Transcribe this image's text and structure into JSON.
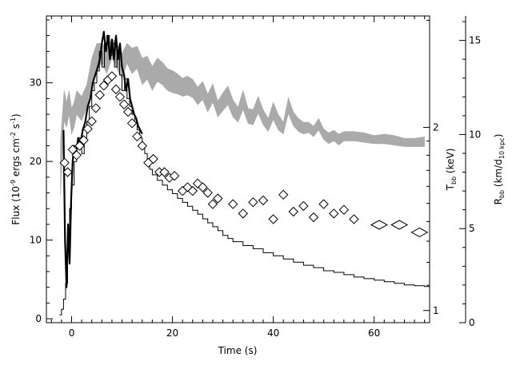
{
  "chart_data": {
    "type": "line",
    "xlabel": "Time (s)",
    "xlim": [
      -5,
      71
    ],
    "x_ticks": [
      0,
      20,
      40,
      60
    ],
    "y_left": {
      "label_parts": [
        "Flux (10",
        "-9",
        " ergs cm",
        "-2",
        " s",
        "-1",
        ")"
      ],
      "lim": [
        -0.5,
        38.5
      ],
      "ticks": [
        0,
        10,
        20,
        30
      ]
    },
    "y_tbb": {
      "label_main": "T",
      "label_sub": "bb",
      "label_rest": " (keV)",
      "scale": "log",
      "lim": [
        0.955,
        3.05
      ],
      "ticks": [
        1,
        2
      ]
    },
    "y_rbb": {
      "label_main": "R",
      "label_sub": "bb",
      "label_rest1": " (km/d",
      "label_sub2": "10 kpc",
      "label_rest2": ")",
      "lim": [
        0,
        16.3
      ],
      "ticks": [
        0,
        5,
        10,
        15
      ]
    },
    "series": [
      {
        "style": "step",
        "axis": "left",
        "points": [
          [
            -2.4,
            0.5
          ],
          [
            -2.0,
            1.2
          ],
          [
            -1.6,
            2.5
          ],
          [
            -1.2,
            4.5
          ],
          [
            -0.8,
            9
          ],
          [
            -0.4,
            14
          ],
          [
            0,
            17
          ],
          [
            0.5,
            20
          ],
          [
            1,
            22
          ],
          [
            1.5,
            23
          ],
          [
            2,
            21
          ],
          [
            2.5,
            23
          ],
          [
            3,
            25
          ],
          [
            3.5,
            27
          ],
          [
            4,
            29
          ],
          [
            4.5,
            30
          ],
          [
            5,
            31.5
          ],
          [
            5.5,
            34
          ],
          [
            6,
            32
          ],
          [
            6.5,
            35
          ],
          [
            7,
            36
          ],
          [
            7.5,
            33.5
          ],
          [
            8,
            35
          ],
          [
            8.5,
            32
          ],
          [
            9,
            34
          ],
          [
            9.5,
            31
          ],
          [
            10,
            29
          ],
          [
            10.5,
            30.5
          ],
          [
            11,
            28
          ],
          [
            11.5,
            27
          ],
          [
            12,
            26
          ],
          [
            12.5,
            25
          ],
          [
            13,
            24
          ],
          [
            13.5,
            23
          ],
          [
            14,
            22
          ],
          [
            14.5,
            21
          ],
          [
            15,
            20
          ],
          [
            15.5,
            19
          ],
          [
            16,
            18.3
          ],
          [
            17,
            17.6
          ],
          [
            18,
            17
          ],
          [
            19,
            16.4
          ],
          [
            20,
            15.9
          ],
          [
            21,
            15.3
          ],
          [
            22,
            14.8
          ],
          [
            23,
            14.3
          ],
          [
            24,
            13.8
          ],
          [
            25,
            13.3
          ],
          [
            26,
            12.7
          ],
          [
            27,
            12.2
          ],
          [
            28,
            11.7
          ],
          [
            29,
            11.2
          ],
          [
            30,
            10.6
          ],
          [
            31,
            10.2
          ],
          [
            32,
            9.8
          ],
          [
            34,
            9.3
          ],
          [
            36,
            8.9
          ],
          [
            38,
            8.4
          ],
          [
            40,
            8.0
          ],
          [
            42,
            7.6
          ],
          [
            44,
            7.2
          ],
          [
            46,
            6.8
          ],
          [
            48,
            6.5
          ],
          [
            50,
            6.1
          ],
          [
            52,
            5.9
          ],
          [
            54,
            5.6
          ],
          [
            56,
            5.3
          ],
          [
            58,
            5.1
          ],
          [
            60,
            4.9
          ],
          [
            62,
            4.7
          ],
          [
            64,
            4.5
          ],
          [
            66,
            4.3
          ],
          [
            68,
            4.2
          ],
          [
            70,
            4.1
          ]
        ]
      },
      {
        "style": "thick-line",
        "axis": "left",
        "points": [
          [
            -1.6,
            24
          ],
          [
            -1.3,
            10
          ],
          [
            -1.0,
            4
          ],
          [
            -0.7,
            12
          ],
          [
            -0.4,
            7
          ],
          [
            -0.1,
            15
          ],
          [
            0.2,
            20
          ],
          [
            0.5,
            22
          ],
          [
            0.9,
            21
          ],
          [
            1.3,
            23
          ],
          [
            1.7,
            22
          ],
          [
            2.2,
            24
          ],
          [
            2.7,
            25
          ],
          [
            3.2,
            27
          ],
          [
            3.7,
            28
          ],
          [
            4.2,
            30
          ],
          [
            4.7,
            31
          ],
          [
            5.2,
            32
          ],
          [
            5.6,
            33
          ],
          [
            6.0,
            35
          ],
          [
            6.4,
            36.5
          ],
          [
            6.8,
            34
          ],
          [
            7.2,
            36
          ],
          [
            7.6,
            33
          ],
          [
            8.0,
            35.5
          ],
          [
            8.4,
            33
          ],
          [
            8.8,
            36
          ],
          [
            9.2,
            33
          ],
          [
            9.6,
            35
          ],
          [
            10.0,
            32
          ],
          [
            10.4,
            31
          ],
          [
            10.8,
            29
          ],
          [
            11.2,
            30.5
          ],
          [
            11.6,
            28
          ],
          [
            12.0,
            27
          ],
          [
            12.4,
            26
          ],
          [
            12.8,
            25.5
          ],
          [
            13.2,
            24.5
          ],
          [
            13.6,
            24
          ],
          [
            14.0,
            23.5
          ]
        ]
      },
      {
        "style": "band",
        "axis": "tbb",
        "color": "#aaaaaa",
        "x": [
          -2.2,
          -1.5,
          -1,
          -0.5,
          0,
          0.5,
          1,
          2,
          3,
          4,
          5,
          6,
          7,
          8,
          9,
          10,
          11,
          12,
          13,
          14,
          15,
          16,
          17,
          18,
          19,
          20,
          21,
          22,
          23,
          24,
          25,
          26,
          27,
          28,
          29,
          30,
          31,
          32,
          33,
          34,
          35,
          36,
          37,
          38,
          39,
          40,
          41,
          42,
          43,
          44,
          45,
          46,
          47,
          48,
          49,
          50,
          51,
          52,
          53,
          54,
          56,
          58,
          60,
          62,
          64,
          66,
          68,
          70
        ],
        "lower": [
          1.55,
          2.05,
          2.0,
          2.1,
          1.95,
          2.0,
          2.1,
          2.05,
          2.15,
          2.35,
          2.5,
          2.55,
          2.45,
          2.6,
          2.5,
          2.4,
          2.55,
          2.45,
          2.5,
          2.35,
          2.4,
          2.3,
          2.38,
          2.35,
          2.3,
          2.28,
          2.27,
          2.25,
          2.26,
          2.24,
          2.18,
          2.22,
          2.12,
          2.2,
          2.08,
          2.13,
          2.18,
          2.08,
          2.04,
          2.14,
          2.03,
          2.02,
          2.11,
          2.02,
          1.97,
          2.06,
          1.98,
          1.95,
          2.11,
          2.01,
          1.97,
          1.95,
          1.96,
          1.93,
          1.98,
          1.91,
          1.88,
          1.9,
          1.87,
          1.9,
          1.9,
          1.89,
          1.88,
          1.88,
          1.87,
          1.86,
          1.86,
          1.86
        ],
        "upper": [
          1.9,
          2.3,
          2.2,
          2.3,
          2.15,
          2.2,
          2.3,
          2.25,
          2.35,
          2.6,
          2.75,
          2.75,
          2.7,
          2.8,
          2.75,
          2.65,
          2.75,
          2.7,
          2.72,
          2.6,
          2.62,
          2.52,
          2.6,
          2.56,
          2.5,
          2.48,
          2.45,
          2.41,
          2.43,
          2.4,
          2.33,
          2.38,
          2.27,
          2.36,
          2.21,
          2.28,
          2.34,
          2.22,
          2.16,
          2.3,
          2.15,
          2.14,
          2.25,
          2.14,
          2.07,
          2.2,
          2.1,
          2.04,
          2.24,
          2.12,
          2.07,
          2.04,
          2.04,
          2.01,
          2.07,
          1.99,
          1.96,
          1.98,
          1.95,
          1.97,
          1.97,
          1.96,
          1.94,
          1.95,
          1.94,
          1.92,
          1.92,
          1.93
        ]
      },
      {
        "style": "diamonds",
        "axis": "rbb",
        "points": [
          [
            -1.4,
            8.5
          ],
          [
            -0.8,
            8.0
          ],
          [
            0.2,
            9.2
          ],
          [
            1.0,
            8.9
          ],
          [
            1.6,
            9.4
          ],
          [
            2.4,
            9.7
          ],
          [
            3.2,
            10.3
          ],
          [
            4.0,
            10.7
          ],
          [
            4.8,
            11.4
          ],
          [
            5.6,
            12.1
          ],
          [
            6.4,
            12.6
          ],
          [
            7.2,
            12.9
          ],
          [
            8.0,
            13.1
          ],
          [
            8.8,
            12.4
          ],
          [
            9.6,
            12.0
          ],
          [
            10.4,
            11.6
          ],
          [
            11.2,
            11.2
          ],
          [
            12.0,
            10.6
          ],
          [
            13.0,
            9.9
          ],
          [
            14.0,
            9.4
          ],
          [
            15.2,
            8.5
          ],
          [
            16.2,
            8.7
          ],
          [
            17.4,
            8.0
          ],
          [
            18.4,
            8.0
          ],
          [
            19.4,
            7.7
          ],
          [
            20.4,
            7.8
          ],
          [
            22.0,
            7.0
          ],
          [
            23.0,
            7.2
          ],
          [
            24.0,
            7.0
          ],
          [
            25.0,
            7.4
          ],
          [
            26.0,
            7.2
          ],
          [
            27.0,
            6.9
          ],
          [
            28.0,
            6.3
          ],
          [
            29.0,
            6.6
          ],
          [
            32.0,
            6.3
          ],
          [
            34.0,
            5.8
          ],
          [
            36.0,
            6.4
          ],
          [
            38.0,
            6.5
          ],
          [
            40.0,
            5.5
          ],
          [
            42.0,
            6.8
          ],
          [
            44.0,
            5.9
          ],
          [
            46.0,
            6.2
          ],
          [
            48.0,
            5.6
          ],
          [
            50.0,
            6.3
          ],
          [
            52.0,
            5.8
          ],
          [
            54.0,
            6.0
          ],
          [
            56.0,
            5.5
          ],
          [
            61.0,
            5.2
          ],
          [
            65.0,
            5.2
          ],
          [
            69.0,
            4.8
          ]
        ]
      }
    ]
  }
}
